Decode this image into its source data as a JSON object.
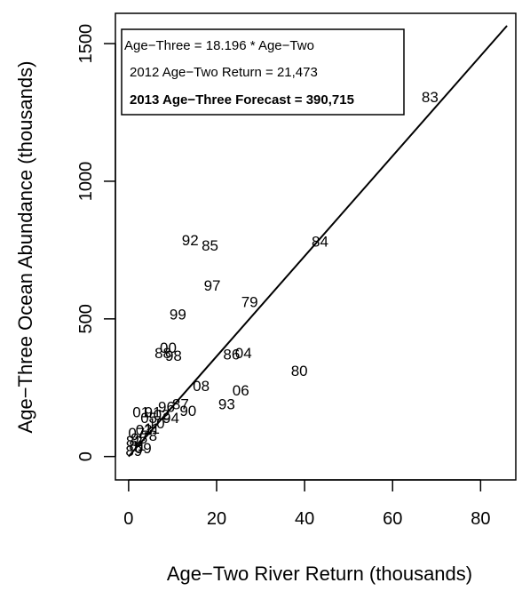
{
  "chart_data": {
    "type": "scatter",
    "xlabel": "Age−Two River Return (thousands)",
    "ylabel": "Age−Three Ocean Abundance (thousands)",
    "xlim": [
      -3,
      88
    ],
    "ylim": [
      -85,
      1610
    ],
    "xticks": [
      0,
      20,
      40,
      60,
      80
    ],
    "yticks": [
      0,
      500,
      1000,
      1500
    ],
    "grid": false,
    "legend": {
      "placement": "top-left",
      "lines": [
        "Age−Three = 18.196 * Age−Two",
        "2012 Age−Two Return = 21,473",
        "2013 Age−Three Forecast = 390,715"
      ]
    },
    "fit_line": {
      "slope": 18.196,
      "intercept": 0,
      "x_range": [
        0,
        86
      ]
    },
    "points": [
      {
        "label": "83",
        "x": 68.5,
        "y": 1305
      },
      {
        "label": "84",
        "x": 43.5,
        "y": 780
      },
      {
        "label": "92",
        "x": 14.0,
        "y": 785
      },
      {
        "label": "85",
        "x": 18.5,
        "y": 765
      },
      {
        "label": "97",
        "x": 19.0,
        "y": 620
      },
      {
        "label": "79",
        "x": 27.5,
        "y": 560
      },
      {
        "label": "99",
        "x": 11.2,
        "y": 515
      },
      {
        "label": "00",
        "x": 9.0,
        "y": 395
      },
      {
        "label": "88",
        "x": 7.8,
        "y": 375
      },
      {
        "label": "98",
        "x": 10.2,
        "y": 365
      },
      {
        "label": "86",
        "x": 23.4,
        "y": 370
      },
      {
        "label": "04",
        "x": 26.1,
        "y": 375
      },
      {
        "label": "80",
        "x": 38.8,
        "y": 310
      },
      {
        "label": "08",
        "x": 16.5,
        "y": 255
      },
      {
        "label": "06",
        "x": 25.5,
        "y": 240
      },
      {
        "label": "93",
        "x": 22.3,
        "y": 190
      },
      {
        "label": "90",
        "x": 13.5,
        "y": 165
      },
      {
        "label": "87",
        "x": 11.8,
        "y": 190
      },
      {
        "label": "94",
        "x": 9.6,
        "y": 140
      },
      {
        "label": "01",
        "x": 2.8,
        "y": 160
      },
      {
        "label": "91",
        "x": 5.5,
        "y": 160
      },
      {
        "label": "96",
        "x": 8.6,
        "y": 180
      },
      {
        "label": "02",
        "x": 7.5,
        "y": 150
      },
      {
        "label": "05",
        "x": 4.6,
        "y": 140
      },
      {
        "label": "03",
        "x": 3.5,
        "y": 95
      },
      {
        "label": "07",
        "x": 1.8,
        "y": 85
      },
      {
        "label": "95",
        "x": 2.4,
        "y": 65
      },
      {
        "label": "82",
        "x": 1.3,
        "y": 55
      },
      {
        "label": "89",
        "x": 1.2,
        "y": 20
      },
      {
        "label": "81",
        "x": 2.0,
        "y": 40
      },
      {
        "label": "78",
        "x": 4.6,
        "y": 75
      },
      {
        "label": "09",
        "x": 3.3,
        "y": 30
      },
      {
        "label": "10",
        "x": 6.3,
        "y": 120
      },
      {
        "label": "11",
        "x": 5.3,
        "y": 100
      }
    ]
  }
}
